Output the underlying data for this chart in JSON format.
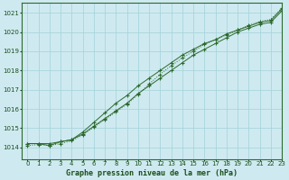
{
  "title": "Graphe pression niveau de la mer (hPa)",
  "bg_color": "#ceeaf0",
  "grid_color": "#a8d5dc",
  "line_color": "#2d6a2d",
  "text_color": "#1a4d1a",
  "xlim": [
    -0.5,
    23
  ],
  "ylim": [
    1013.4,
    1021.5
  ],
  "yticks": [
    1014,
    1015,
    1016,
    1017,
    1018,
    1019,
    1020,
    1021
  ],
  "xticks": [
    0,
    1,
    2,
    3,
    4,
    5,
    6,
    7,
    8,
    9,
    10,
    11,
    12,
    13,
    14,
    15,
    16,
    17,
    18,
    19,
    20,
    21,
    22,
    23
  ],
  "series1_x": [
    0,
    1,
    2,
    3,
    4,
    5,
    6,
    7,
    8,
    9,
    10,
    11,
    12,
    13,
    14,
    15,
    16,
    17,
    18,
    19,
    20,
    21,
    22,
    23
  ],
  "series1_y": [
    1014.2,
    1014.2,
    1014.2,
    1014.3,
    1014.4,
    1014.7,
    1015.1,
    1015.5,
    1015.9,
    1016.3,
    1016.8,
    1017.2,
    1017.6,
    1018.0,
    1018.4,
    1018.8,
    1019.1,
    1019.4,
    1019.7,
    1020.0,
    1020.2,
    1020.4,
    1020.5,
    1021.1
  ],
  "series2_x": [
    0,
    1,
    2,
    3,
    4,
    5,
    6,
    7,
    8,
    9,
    10,
    11,
    12,
    13,
    14,
    15,
    16,
    17,
    18,
    19,
    20,
    21,
    22,
    23
  ],
  "series2_y": [
    1014.2,
    1014.2,
    1014.1,
    1014.3,
    1014.4,
    1014.8,
    1015.3,
    1015.8,
    1016.3,
    1016.7,
    1017.2,
    1017.6,
    1018.0,
    1018.4,
    1018.8,
    1019.1,
    1019.4,
    1019.6,
    1019.9,
    1020.1,
    1020.3,
    1020.5,
    1020.6,
    1021.2
  ],
  "series3_x": [
    0,
    1,
    2,
    3,
    4,
    5,
    6,
    7,
    8,
    9,
    10,
    11,
    12,
    13,
    14,
    15,
    16,
    17,
    18,
    19,
    20,
    21,
    22,
    23
  ],
  "series3_y": [
    1014.1,
    1014.15,
    1014.1,
    1014.2,
    1014.35,
    1014.65,
    1015.05,
    1015.45,
    1015.85,
    1016.25,
    1016.75,
    1017.3,
    1017.8,
    1018.25,
    1018.65,
    1019.0,
    1019.35,
    1019.6,
    1019.85,
    1020.1,
    1020.35,
    1020.55,
    1020.65,
    1021.25
  ]
}
